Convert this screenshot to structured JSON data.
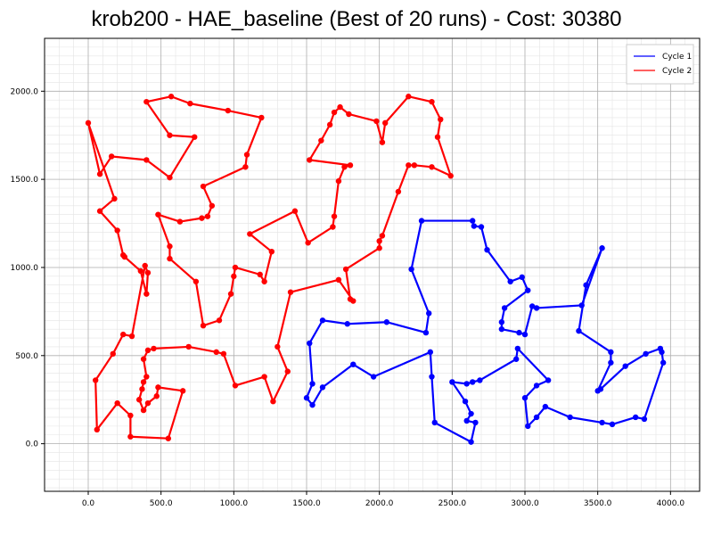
{
  "chart_data": {
    "type": "line",
    "title": "krob200 - HAE_baseline (Best of 20 runs) - Cost: 30380",
    "xlabel": "",
    "ylabel": "",
    "xlim": [
      -300,
      4200
    ],
    "ylim": [
      -270,
      2300
    ],
    "x_ticks": [
      0,
      500,
      1000,
      1500,
      2000,
      2500,
      3000,
      3500,
      4000
    ],
    "x_tick_labels": [
      "0.0",
      "500.0",
      "1000.0",
      "1500.0",
      "2000.0",
      "2500.0",
      "3000.0",
      "3500.0",
      "4000.0"
    ],
    "y_ticks": [
      0,
      500,
      1000,
      1500,
      2000
    ],
    "y_tick_labels": [
      "0.0",
      "500.0",
      "1000.0",
      "1500.0",
      "2000.0"
    ],
    "grid": true,
    "minor_grid": true,
    "legend_position": "top-right",
    "series": [
      {
        "name": "Cycle 1",
        "color": "#0000ff",
        "closed": true,
        "points": [
          [
            2290,
            1265
          ],
          [
            2640,
            1265
          ],
          [
            2650,
            1235
          ],
          [
            2700,
            1230
          ],
          [
            2740,
            1100
          ],
          [
            2900,
            920
          ],
          [
            2980,
            945
          ],
          [
            3020,
            870
          ],
          [
            2860,
            770
          ],
          [
            2840,
            690
          ],
          [
            2840,
            650
          ],
          [
            2960,
            630
          ],
          [
            3000,
            620
          ],
          [
            3050,
            780
          ],
          [
            3080,
            770
          ],
          [
            3390,
            785
          ],
          [
            3530,
            1110
          ],
          [
            3420,
            900
          ],
          [
            3370,
            640
          ],
          [
            3590,
            520
          ],
          [
            3590,
            460
          ],
          [
            3500,
            300
          ],
          [
            3520,
            310
          ],
          [
            3690,
            440
          ],
          [
            3830,
            510
          ],
          [
            3930,
            540
          ],
          [
            3940,
            520
          ],
          [
            3950,
            460
          ],
          [
            3820,
            140
          ],
          [
            3760,
            150
          ],
          [
            3600,
            110
          ],
          [
            3530,
            120
          ],
          [
            3310,
            150
          ],
          [
            3140,
            210
          ],
          [
            3080,
            150
          ],
          [
            3020,
            100
          ],
          [
            3000,
            260
          ],
          [
            3080,
            330
          ],
          [
            3160,
            360
          ],
          [
            2950,
            540
          ],
          [
            2940,
            480
          ],
          [
            2690,
            360
          ],
          [
            2640,
            350
          ],
          [
            2600,
            340
          ],
          [
            2500,
            350
          ],
          [
            2590,
            240
          ],
          [
            2630,
            170
          ],
          [
            2600,
            130
          ],
          [
            2660,
            120
          ],
          [
            2630,
            10
          ],
          [
            2380,
            120
          ],
          [
            2360,
            380
          ],
          [
            2350,
            520
          ],
          [
            1960,
            380
          ],
          [
            1820,
            450
          ],
          [
            1610,
            320
          ],
          [
            1540,
            220
          ],
          [
            1500,
            260
          ],
          [
            1540,
            340
          ],
          [
            1520,
            570
          ],
          [
            1610,
            700
          ],
          [
            1780,
            680
          ],
          [
            2050,
            690
          ],
          [
            2320,
            630
          ],
          [
            2340,
            740
          ],
          [
            2220,
            990
          ]
        ]
      },
      {
        "name": "Cycle 2",
        "color": "#ff0000",
        "closed": true,
        "points": [
          [
            0,
            1820
          ],
          [
            80,
            1530
          ],
          [
            160,
            1630
          ],
          [
            400,
            1610
          ],
          [
            560,
            1510
          ],
          [
            730,
            1740
          ],
          [
            560,
            1750
          ],
          [
            400,
            1940
          ],
          [
            570,
            1970
          ],
          [
            700,
            1930
          ],
          [
            960,
            1890
          ],
          [
            1190,
            1850
          ],
          [
            1090,
            1640
          ],
          [
            1080,
            1570
          ],
          [
            790,
            1460
          ],
          [
            850,
            1350
          ],
          [
            820,
            1290
          ],
          [
            780,
            1280
          ],
          [
            630,
            1260
          ],
          [
            480,
            1300
          ],
          [
            560,
            1120
          ],
          [
            560,
            1050
          ],
          [
            740,
            920
          ],
          [
            790,
            670
          ],
          [
            900,
            700
          ],
          [
            980,
            850
          ],
          [
            1000,
            950
          ],
          [
            1010,
            1000
          ],
          [
            1180,
            960
          ],
          [
            1210,
            920
          ],
          [
            1260,
            1090
          ],
          [
            1110,
            1190
          ],
          [
            1420,
            1320
          ],
          [
            1510,
            1140
          ],
          [
            1680,
            1230
          ],
          [
            1690,
            1290
          ],
          [
            1720,
            1490
          ],
          [
            1760,
            1570
          ],
          [
            1800,
            1580
          ],
          [
            1520,
            1610
          ],
          [
            1600,
            1720
          ],
          [
            1660,
            1810
          ],
          [
            1690,
            1880
          ],
          [
            1730,
            1910
          ],
          [
            1790,
            1870
          ],
          [
            1980,
            1830
          ],
          [
            2020,
            1710
          ],
          [
            2040,
            1820
          ],
          [
            2200,
            1970
          ],
          [
            2360,
            1940
          ],
          [
            2420,
            1840
          ],
          [
            2400,
            1740
          ],
          [
            2490,
            1520
          ],
          [
            2360,
            1570
          ],
          [
            2240,
            1580
          ],
          [
            2200,
            1580
          ],
          [
            2130,
            1430
          ],
          [
            2020,
            1180
          ],
          [
            2000,
            1150
          ],
          [
            2000,
            1110
          ],
          [
            1770,
            990
          ],
          [
            1800,
            820
          ],
          [
            1820,
            810
          ],
          [
            1720,
            930
          ],
          [
            1390,
            860
          ],
          [
            1300,
            550
          ],
          [
            1370,
            410
          ],
          [
            1270,
            240
          ],
          [
            1210,
            380
          ],
          [
            1010,
            330
          ],
          [
            930,
            510
          ],
          [
            880,
            520
          ],
          [
            690,
            550
          ],
          [
            450,
            540
          ],
          [
            410,
            530
          ],
          [
            380,
            480
          ],
          [
            400,
            380
          ],
          [
            380,
            350
          ],
          [
            370,
            310
          ],
          [
            350,
            250
          ],
          [
            380,
            190
          ],
          [
            410,
            230
          ],
          [
            470,
            270
          ],
          [
            480,
            320
          ],
          [
            650,
            300
          ],
          [
            550,
            30
          ],
          [
            290,
            40
          ],
          [
            290,
            160
          ],
          [
            200,
            230
          ],
          [
            60,
            80
          ],
          [
            50,
            360
          ],
          [
            170,
            510
          ],
          [
            240,
            620
          ],
          [
            300,
            610
          ],
          [
            390,
            1010
          ],
          [
            410,
            970
          ],
          [
            400,
            850
          ],
          [
            360,
            980
          ],
          [
            250,
            1060
          ],
          [
            240,
            1070
          ],
          [
            200,
            1210
          ],
          [
            80,
            1320
          ],
          [
            180,
            1390
          ]
        ]
      }
    ]
  }
}
